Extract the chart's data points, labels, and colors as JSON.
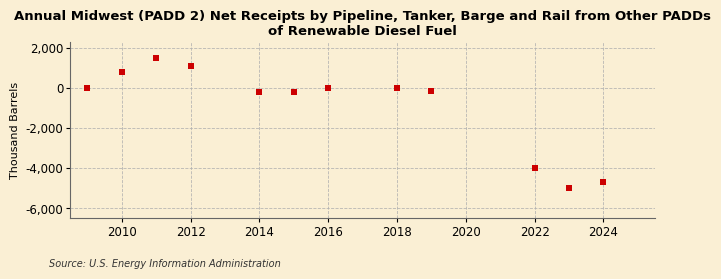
{
  "title": "Annual Midwest (PADD 2) Net Receipts by Pipeline, Tanker, Barge and Rail from Other PADDs\nof Renewable Diesel Fuel",
  "ylabel": "Thousand Barrels",
  "source": "Source: U.S. Energy Information Administration",
  "background_color": "#faefd4",
  "plot_bg_color": "#faefd4",
  "years": [
    2009,
    2010,
    2011,
    2012,
    2014,
    2015,
    2016,
    2018,
    2019,
    2022,
    2023,
    2024
  ],
  "values": [
    0,
    800,
    1500,
    1100,
    -200,
    -200,
    0,
    -30,
    -150,
    -4000,
    -5000,
    -4700
  ],
  "marker_color": "#cc0000",
  "marker_size": 18,
  "ylim": [
    -6500,
    2300
  ],
  "yticks": [
    -6000,
    -4000,
    -2000,
    0,
    2000
  ],
  "xlim": [
    2008.5,
    2025.5
  ],
  "xticks": [
    2010,
    2012,
    2014,
    2016,
    2018,
    2020,
    2022,
    2024
  ],
  "grid_color": "#b0b0b0",
  "title_fontsize": 9.5,
  "label_fontsize": 8,
  "tick_fontsize": 8.5
}
